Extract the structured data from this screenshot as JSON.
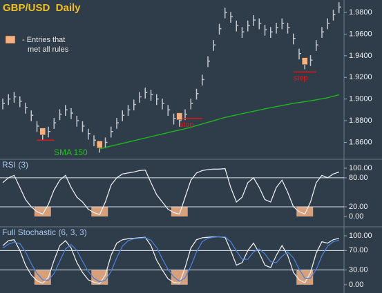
{
  "chart_data": [
    {
      "type": "ohlc",
      "title": "GBP/USD  Daily",
      "color": "#c4c8cc",
      "high": [
        1.9005,
        1.9045,
        1.9065,
        1.9025,
        1.8965,
        1.8895,
        1.8795,
        1.8725,
        1.8745,
        1.8825,
        1.8905,
        1.8945,
        1.8915,
        1.8845,
        1.8795,
        1.8725,
        1.8665,
        1.8605,
        1.8645,
        1.8745,
        1.8825,
        1.8895,
        1.8945,
        1.8995,
        1.9065,
        1.9105,
        1.9085,
        1.9045,
        1.9005,
        1.8945,
        1.8865,
        1.8845,
        1.8905,
        1.9005,
        1.9095,
        1.9225,
        1.9395,
        1.9545,
        1.9695,
        1.9845,
        1.9805,
        1.9725,
        1.9665,
        1.9725,
        1.9775,
        1.9745,
        1.9685,
        1.9665,
        1.9705,
        1.9745,
        1.9705,
        1.9605,
        1.9465,
        1.9375,
        1.9405,
        1.9545,
        1.9665,
        1.9745,
        1.9825,
        1.9895
      ],
      "low": [
        1.8905,
        1.8945,
        1.8965,
        1.8925,
        1.8865,
        1.8795,
        1.8695,
        1.8625,
        1.8645,
        1.8725,
        1.8805,
        1.8845,
        1.8815,
        1.8745,
        1.8695,
        1.8625,
        1.8565,
        1.8505,
        1.8545,
        1.8645,
        1.8725,
        1.8795,
        1.8845,
        1.8895,
        1.8965,
        1.9005,
        1.8985,
        1.8945,
        1.8905,
        1.8845,
        1.8765,
        1.8745,
        1.8805,
        1.8905,
        1.8995,
        1.9125,
        1.9295,
        1.9445,
        1.9595,
        1.9745,
        1.9705,
        1.9625,
        1.9565,
        1.9625,
        1.9675,
        1.9645,
        1.9585,
        1.9565,
        1.9605,
        1.9645,
        1.9605,
        1.9505,
        1.9365,
        1.9275,
        1.9305,
        1.9445,
        1.9565,
        1.9645,
        1.9725,
        1.9795
      ],
      "close": [
        1.896,
        1.9,
        1.902,
        1.898,
        1.892,
        1.885,
        1.875,
        1.868,
        1.87,
        1.878,
        1.886,
        1.89,
        1.887,
        1.88,
        1.875,
        1.868,
        1.862,
        1.856,
        1.86,
        1.87,
        1.878,
        1.885,
        1.89,
        1.895,
        1.902,
        1.906,
        1.904,
        1.9,
        1.896,
        1.89,
        1.882,
        1.88,
        1.886,
        1.896,
        1.905,
        1.918,
        1.935,
        1.95,
        1.965,
        1.98,
        1.976,
        1.968,
        1.962,
        1.968,
        1.973,
        1.97,
        1.964,
        1.962,
        1.966,
        1.97,
        1.966,
        1.956,
        1.942,
        1.933,
        1.936,
        1.95,
        1.962,
        1.97,
        1.978,
        1.985
      ],
      "series": [
        {
          "name": "SMA 150",
          "color": "#20b020",
          "values": [
            null,
            null,
            null,
            null,
            null,
            null,
            null,
            null,
            null,
            null,
            null,
            null,
            null,
            null,
            null,
            null,
            null,
            1.854,
            1.8552,
            1.8565,
            1.8578,
            1.859,
            1.8603,
            1.8615,
            1.8628,
            1.864,
            1.8652,
            1.8665,
            1.8677,
            1.869,
            1.8702,
            1.8714,
            1.8726,
            1.874,
            1.8755,
            1.877,
            1.8785,
            1.88,
            1.8815,
            1.883,
            1.8842,
            1.8854,
            1.8865,
            1.8876,
            1.8887,
            1.8898,
            1.8909,
            1.892,
            1.893,
            1.894,
            1.895,
            1.896,
            1.8968,
            1.8976,
            1.8984,
            1.8993,
            1.9002,
            1.9012,
            1.9025,
            1.904
          ]
        }
      ],
      "entries": [
        null,
        null,
        null,
        null,
        null,
        null,
        null,
        1.87,
        null,
        null,
        null,
        null,
        null,
        null,
        null,
        null,
        null,
        1.858,
        null,
        null,
        null,
        null,
        null,
        null,
        null,
        null,
        null,
        null,
        null,
        null,
        null,
        1.884,
        null,
        null,
        null,
        null,
        null,
        null,
        null,
        null,
        null,
        null,
        null,
        null,
        null,
        null,
        null,
        null,
        null,
        null,
        null,
        null,
        null,
        1.935,
        null,
        null,
        null,
        null,
        null,
        null
      ],
      "entry_color": "#f4b183",
      "legend": [
        "- Entries that",
        "met all rules"
      ],
      "stops": [
        null,
        null,
        null,
        null,
        null,
        null,
        1.862,
        1.862,
        1.862,
        1.862,
        null,
        null,
        null,
        null,
        null,
        null,
        null,
        null,
        null,
        null,
        null,
        null,
        null,
        null,
        null,
        null,
        null,
        null,
        null,
        null,
        null,
        1.882,
        1.882,
        1.882,
        1.882,
        1.882,
        null,
        null,
        null,
        null,
        null,
        null,
        null,
        null,
        null,
        null,
        null,
        null,
        null,
        null,
        null,
        1.925,
        1.925,
        1.925,
        1.925,
        1.925,
        null,
        null,
        null,
        null
      ],
      "stop_color": "#e01818",
      "stop_labels": [
        "stop",
        "stop"
      ],
      "ylim": [
        1.845,
        1.9915
      ],
      "yticks": [
        {
          "value": 1.86,
          "label": "1.8600"
        },
        {
          "value": 1.88,
          "label": "1.8800"
        },
        {
          "value": 1.9,
          "label": "1.9000"
        },
        {
          "value": 1.92,
          "label": "1.9200"
        },
        {
          "value": 1.94,
          "label": "1.9400"
        },
        {
          "value": 1.96,
          "label": "1.9600"
        },
        {
          "value": 1.98,
          "label": "1.9800"
        }
      ]
    },
    {
      "type": "oscillator",
      "title": "RSI (3)",
      "series": [
        {
          "color": "#e8ecf0",
          "values": [
            70,
            80,
            85,
            60,
            35,
            20,
            10,
            5,
            25,
            55,
            75,
            85,
            60,
            40,
            30,
            15,
            8,
            4,
            30,
            65,
            80,
            88,
            90,
            92,
            95,
            96,
            70,
            45,
            30,
            15,
            8,
            5,
            40,
            75,
            90,
            95,
            97,
            98,
            98,
            99,
            60,
            30,
            40,
            70,
            80,
            60,
            35,
            30,
            60,
            75,
            50,
            20,
            10,
            5,
            30,
            70,
            85,
            80,
            88,
            92
          ]
        }
      ],
      "levels": [
        80,
        20
      ],
      "ylim": [
        -20,
        117
      ],
      "yticks": [
        {
          "value": 100,
          "label": "100.00"
        },
        {
          "value": 80,
          "label": "80.00"
        },
        {
          "value": 20,
          "label": "20.00"
        },
        {
          "value": 0,
          "label": "0.00"
        }
      ]
    },
    {
      "type": "oscillator",
      "title": "Full Stochastic (6, 3, 3)",
      "series": [
        {
          "color": "#e8ecf0",
          "values": [
            80,
            90,
            92,
            70,
            40,
            20,
            8,
            3,
            15,
            50,
            80,
            90,
            75,
            45,
            25,
            10,
            5,
            2,
            20,
            60,
            85,
            92,
            94,
            95,
            96,
            97,
            80,
            50,
            30,
            12,
            5,
            3,
            35,
            75,
            92,
            96,
            97,
            98,
            98,
            97,
            70,
            40,
            45,
            70,
            85,
            65,
            40,
            35,
            60,
            80,
            60,
            25,
            10,
            4,
            25,
            65,
            88,
            85,
            92,
            95
          ]
        },
        {
          "color": "#4a80d8",
          "values": [
            75,
            83,
            87,
            84,
            67,
            43,
            23,
            10,
            9,
            23,
            48,
            73,
            82,
            70,
            48,
            27,
            13,
            6,
            9,
            27,
            55,
            79,
            90,
            94,
            95,
            96,
            91,
            76,
            53,
            31,
            16,
            7,
            14,
            38,
            67,
            88,
            95,
            97,
            98,
            98,
            88,
            69,
            52,
            52,
            67,
            73,
            63,
            47,
            45,
            58,
            67,
            55,
            32,
            13,
            13,
            31,
            59,
            79,
            88,
            91
          ]
        }
      ],
      "levels": [
        70,
        30
      ],
      "ylim": [
        -17,
        117
      ],
      "yticks": [
        {
          "value": 100,
          "label": "100.00"
        },
        {
          "value": 70,
          "label": "70.00"
        },
        {
          "value": 30,
          "label": "30.00"
        },
        {
          "value": 0,
          "label": "0.00"
        }
      ]
    }
  ]
}
